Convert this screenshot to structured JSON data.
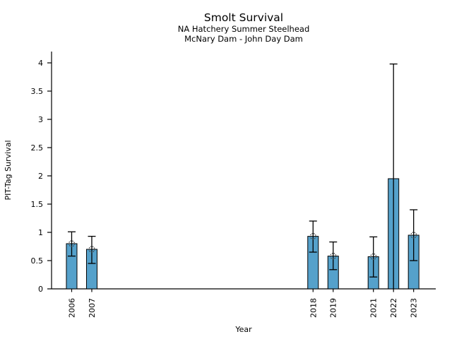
{
  "chart_data": {
    "type": "bar",
    "title": "Smolt Survival",
    "subtitle": [
      "NA Hatchery Summer Steelhead",
      "McNary Dam - John Day Dam"
    ],
    "xlabel": "Year",
    "ylabel": "PIT-Tag Survival",
    "xlim": [
      2005.0,
      2024.1
    ],
    "ylim": [
      0,
      4.2
    ],
    "yticks": [
      0,
      0.5,
      1,
      1.5,
      2,
      2.5,
      3,
      3.5,
      4
    ],
    "ytick_labels": [
      "0",
      "0.5",
      "1",
      "1.5",
      "2",
      "2.5",
      "3",
      "3.5",
      "4"
    ],
    "grid": false,
    "legend": null,
    "bar_color": "#55a1cb",
    "bar_edge_color": "#000000",
    "error_color": "#000000",
    "marker_color": "#404040",
    "points": [
      {
        "year": 2006,
        "label": "2006",
        "value": 0.8,
        "err_low": 0.58,
        "err_high": 1.01,
        "marker": true
      },
      {
        "year": 2007,
        "label": "2007",
        "value": 0.7,
        "err_low": 0.45,
        "err_high": 0.93,
        "marker": true
      },
      {
        "year": 2018,
        "label": "2018",
        "value": 0.93,
        "err_low": 0.65,
        "err_high": 1.2,
        "marker": true
      },
      {
        "year": 2019,
        "label": "2019",
        "value": 0.58,
        "err_low": 0.34,
        "err_high": 0.83,
        "marker": true
      },
      {
        "year": 2021,
        "label": "2021",
        "value": 0.57,
        "err_low": 0.21,
        "err_high": 0.92,
        "marker": true
      },
      {
        "year": 2022,
        "label": "2022",
        "value": 1.95,
        "err_low": 0.0,
        "err_high": 3.98,
        "marker": false
      },
      {
        "year": 2023,
        "label": "2023",
        "value": 0.95,
        "err_low": 0.5,
        "err_high": 1.4,
        "marker": true
      }
    ]
  }
}
